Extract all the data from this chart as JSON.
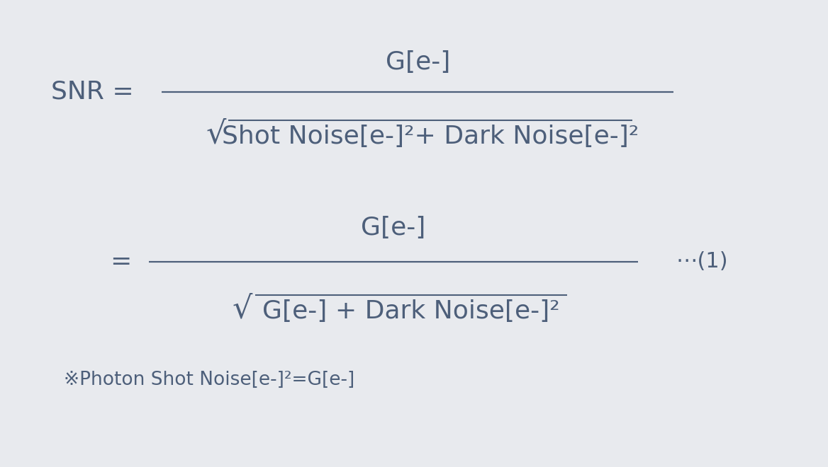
{
  "background_color": "#e8eaee",
  "formula_color": "#4d5f7a",
  "figsize": [
    11.68,
    6.6
  ],
  "dpi": 100,
  "note_text": "※Photon Shot Noise[e-]²=G[e-]",
  "equation_number": "⋯(1)",
  "top_num_text": "G[e-]",
  "top_den_text": "Shot Noise[e-]²+ Dark Noise[e-]²",
  "bot_num_text": "G[e-]",
  "bot_den_text": "G[e-] + Dark Noise[e-]²",
  "snr_label": "SNR =",
  "eq_label": "="
}
